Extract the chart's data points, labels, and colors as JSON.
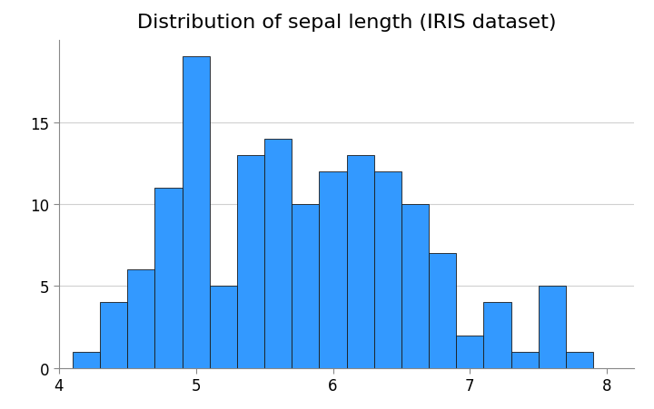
{
  "title": "Distribution of sepal length (IRIS dataset)",
  "bar_heights": [
    1,
    4,
    6,
    11,
    19,
    5,
    13,
    14,
    10,
    12,
    13,
    12,
    10,
    7,
    2,
    4,
    1,
    5,
    1
  ],
  "bin_left_edges": [
    4.1,
    4.3,
    4.5,
    4.7,
    4.9,
    5.1,
    5.3,
    5.5,
    5.7,
    5.9,
    6.1,
    6.3,
    6.5,
    6.7,
    6.9,
    7.1,
    7.3,
    7.5,
    7.7
  ],
  "bin_width": 0.2,
  "bar_color": "#3399FF",
  "bar_edgecolor": "#1a1a1a",
  "xlim": [
    4.0,
    8.2
  ],
  "ylim": [
    0,
    20
  ],
  "xticks": [
    4,
    5,
    6,
    7,
    8
  ],
  "yticks": [
    0,
    5,
    10,
    15
  ],
  "grid_color": "#d0d0d0",
  "background_color": "#ffffff",
  "title_fontsize": 16,
  "tick_fontsize": 12,
  "spine_color": "#888888"
}
